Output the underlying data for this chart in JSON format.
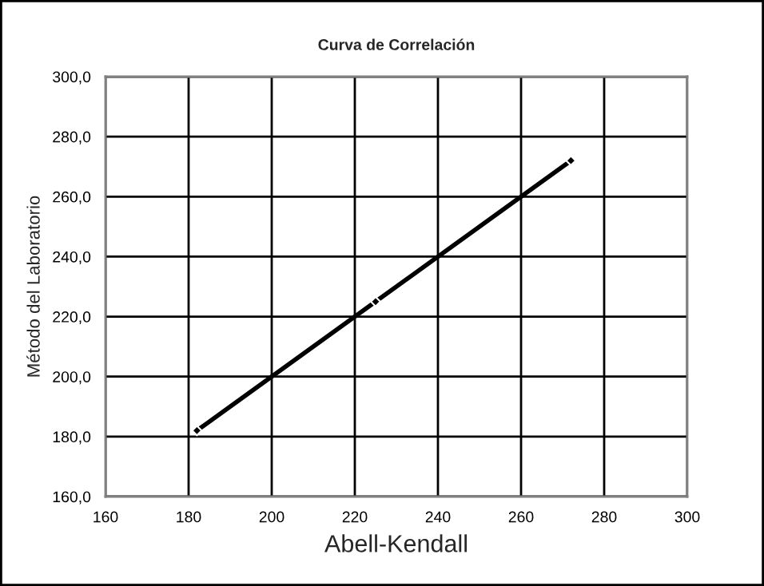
{
  "chart_data": {
    "type": "line",
    "title": "Curva de Correlación",
    "xlabel": "Abell-Kendall",
    "ylabel": "Método del Laboratorio",
    "x": [
      182,
      225,
      272
    ],
    "series": [
      {
        "color": "#000000",
        "values": [
          182,
          225,
          272
        ]
      }
    ],
    "xlim": [
      160,
      300
    ],
    "xticks": [
      160,
      180,
      200,
      220,
      240,
      260,
      280,
      300
    ],
    "ylim": [
      160,
      300
    ],
    "yticks": [
      {
        "value": 160,
        "label": "160,0"
      },
      {
        "value": 180,
        "label": "180,0"
      },
      {
        "value": 200,
        "label": "200,0"
      },
      {
        "value": 220,
        "label": "220,0"
      },
      {
        "value": 240,
        "label": "240,0"
      },
      {
        "value": 260,
        "label": "260,0"
      },
      {
        "value": 280,
        "label": "280,0"
      },
      {
        "value": 300,
        "label": "300,0"
      }
    ],
    "grid": true,
    "marker": "diamond",
    "line_style": "solid"
  }
}
